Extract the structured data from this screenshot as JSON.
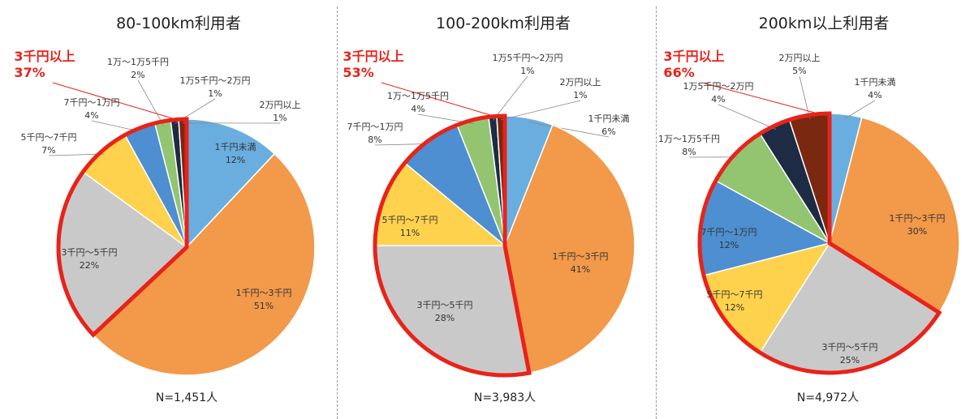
{
  "chart_data": [
    {
      "type": "pie",
      "title": "80-100km利用者",
      "n_label": "N=1,451人",
      "highlight": {
        "label": "3千円以上",
        "value": "37%"
      },
      "labels": [
        "1千円未満",
        "1千円～3千円",
        "3千円～5千円",
        "5千円～7千円",
        "7千円～1万円",
        "1万～1万5千円",
        "1万5千円～2万円",
        "2万円以上"
      ],
      "values": [
        12,
        51,
        22,
        7,
        4,
        2,
        1,
        1
      ],
      "value_labels": [
        "12%",
        "51%",
        "22%",
        "7%",
        "4%",
        "2%",
        "1%",
        "1%"
      ]
    },
    {
      "type": "pie",
      "title": "100-200km利用者",
      "n_label": "N=3,983人",
      "highlight": {
        "label": "3千円以上",
        "value": "53%"
      },
      "labels": [
        "1千円未満",
        "1千円～3千円",
        "3千円～5千円",
        "5千円～7千円",
        "7千円～1万円",
        "1万～1万5千円",
        "1万5千円～2万円",
        "2万円以上"
      ],
      "values": [
        6,
        41,
        28,
        11,
        8,
        4,
        1,
        1
      ],
      "value_labels": [
        "6%",
        "41%",
        "28%",
        "11%",
        "8%",
        "4%",
        "1%",
        "1%"
      ]
    },
    {
      "type": "pie",
      "title": "200km以上利用者",
      "n_label": "N=4,972人",
      "highlight": {
        "label": "3千円以上",
        "value": "66%"
      },
      "labels": [
        "1千円未満",
        "1千円～3千円",
        "3千円～5千円",
        "5千円～7千円",
        "7千円～1万円",
        "1万～1万5千円",
        "1万5千円～2万円",
        "2万円以上"
      ],
      "values": [
        4,
        30,
        25,
        12,
        12,
        8,
        4,
        5
      ],
      "value_labels": [
        "4%",
        "30%",
        "25%",
        "12%",
        "12%",
        "8%",
        "4%",
        "5%"
      ]
    }
  ],
  "colors": [
    "#6aaee0",
    "#f2994a",
    "#c9c9c9",
    "#ffd24d",
    "#4d8fd0",
    "#93c570",
    "#1d2c44",
    "#7a2810"
  ],
  "highlight_color": "#e8231a"
}
